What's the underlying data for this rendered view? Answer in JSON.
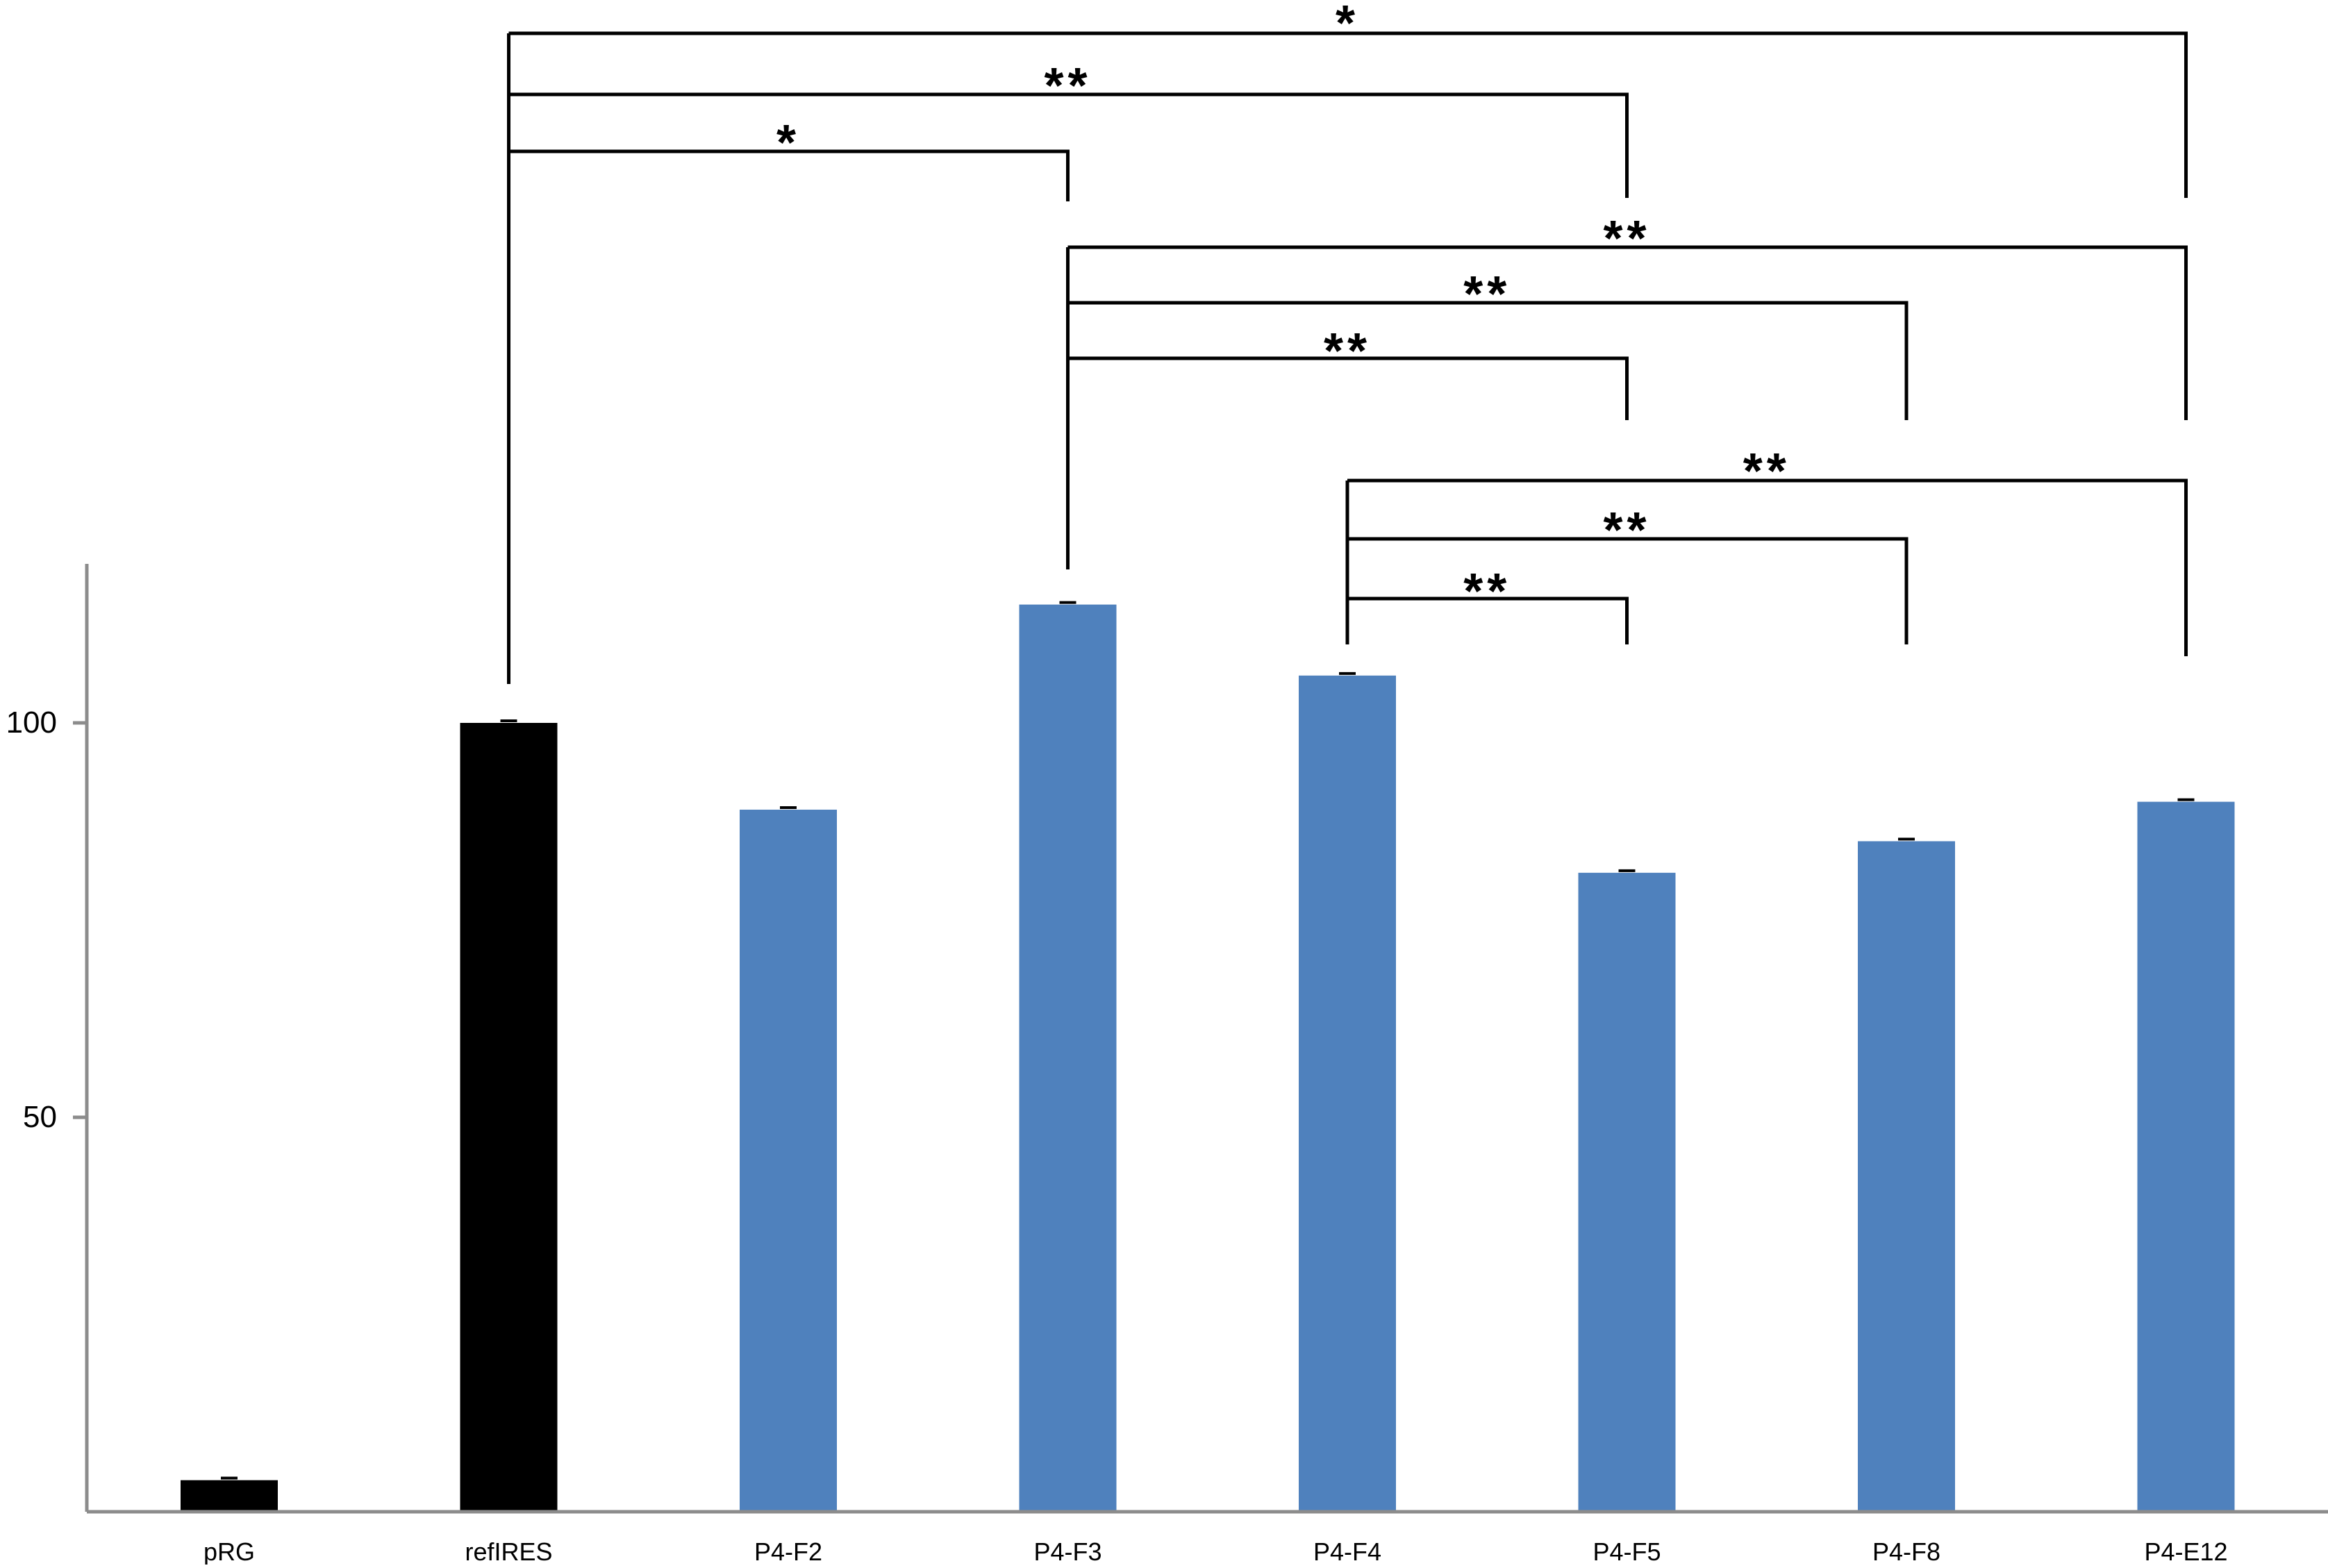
{
  "chart_data": {
    "type": "bar",
    "categories": [
      "pRG",
      "refIRES",
      "P4-F2",
      "P4-F3",
      "P4-F4",
      "P4-F5",
      "P4-F8",
      "P4-E12"
    ],
    "values": [
      4,
      100,
      89,
      115,
      106,
      81,
      85,
      90
    ],
    "bar_colors": [
      "#000000",
      "#000000",
      "#4f81bd",
      "#4f81bd",
      "#4f81bd",
      "#4f81bd",
      "#4f81bd",
      "#4f81bd"
    ],
    "error_bar_color": "#000000",
    "yticks": [
      50,
      100
    ],
    "ylim": [
      0,
      120
    ],
    "grid": false,
    "legend": false,
    "significance": [
      {
        "from": "refIRES",
        "to": "P4-E12",
        "label": "*"
      },
      {
        "from": "refIRES",
        "to": "P4-F5",
        "label": "**"
      },
      {
        "from": "refIRES",
        "to": "P4-F3",
        "label": "*"
      },
      {
        "from": "P4-F3",
        "to": "P4-E12",
        "label": "**"
      },
      {
        "from": "P4-F3",
        "to": "P4-F8",
        "label": "**"
      },
      {
        "from": "P4-F3",
        "to": "P4-F5",
        "label": "**"
      },
      {
        "from": "P4-F4",
        "to": "P4-E12",
        "label": "**"
      },
      {
        "from": "P4-F4",
        "to": "P4-F8",
        "label": "**"
      },
      {
        "from": "P4-F4",
        "to": "P4-F5",
        "label": "**"
      }
    ]
  }
}
